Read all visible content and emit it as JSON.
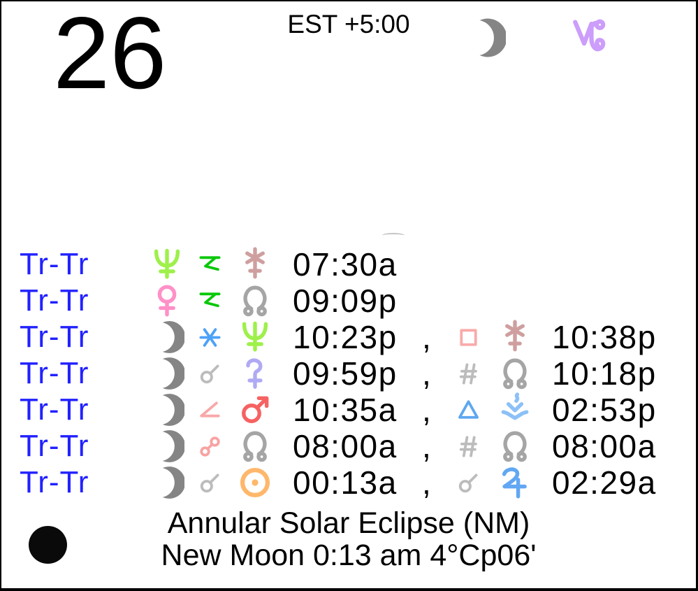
{
  "header": {
    "day_number": "26",
    "timezone": "EST +5:00",
    "moon_icon": "moon",
    "sign_icon": "capricorn"
  },
  "row_label": "Tr-Tr",
  "comma": ",",
  "transits": [
    {
      "label": "Tr-Tr",
      "events": [
        {
          "planet1": "neptune",
          "aspect": "quincunx",
          "planet2": "juno",
          "time": "07:30a"
        }
      ]
    },
    {
      "label": "Tr-Tr",
      "events": [
        {
          "planet1": "venus",
          "aspect": "quincunx",
          "planet2": "node",
          "time": "09:09p"
        }
      ]
    },
    {
      "label": "Tr-Tr",
      "events": [
        {
          "planet1": "moon",
          "aspect": "sextile",
          "planet2": "neptune",
          "time": "10:23p"
        },
        {
          "aspect": "square",
          "planet2": "juno",
          "time": "10:38p"
        }
      ]
    },
    {
      "label": "Tr-Tr",
      "events": [
        {
          "planet1": "moon",
          "aspect": "conjunction",
          "planet2": "ceres",
          "time": "09:59p"
        },
        {
          "aspect": "contraparallel",
          "planet2": "node",
          "time": "10:18p"
        }
      ]
    },
    {
      "label": "Tr-Tr",
      "events": [
        {
          "planet1": "moon",
          "aspect": "semisquare",
          "planet2": "mars",
          "time": "10:35a"
        },
        {
          "aspect": "trine",
          "planet2": "vesta",
          "time": "02:53p"
        }
      ]
    },
    {
      "label": "Tr-Tr",
      "events": [
        {
          "planet1": "moon",
          "aspect": "opposition",
          "planet2": "node",
          "time": "08:00a"
        },
        {
          "aspect": "contraparallel",
          "planet2": "node",
          "time": "08:00a"
        }
      ]
    },
    {
      "label": "Tr-Tr",
      "events": [
        {
          "planet1": "moon",
          "aspect": "conjunction",
          "planet2": "sun",
          "time": "00:13a"
        },
        {
          "aspect": "conjunction",
          "planet2": "jupiter",
          "time": "02:29a"
        }
      ]
    }
  ],
  "footer": {
    "phase_icon": "new-moon",
    "line1": "Annular Solar Eclipse (NM)",
    "line2": "New Moon 0:13 am 4°Cp06'"
  },
  "colors": {
    "label_blue": "#2121ff",
    "text_black": "#000000",
    "moon": "#858585",
    "sun": "#ffb76b",
    "venus": "#ff90c8",
    "mars": "#f66262",
    "jupiter": "#61a7f3",
    "neptune": "#9ef04a",
    "node": "#a5a5a5",
    "ceres": "#b0aaf4",
    "juno": "#cf9f9f",
    "vesta": "#8cc0f8",
    "capricorn": "#cc9dfb",
    "conjunction": "#bcbcbc",
    "opposition": "#f9a2a2",
    "sextile": "#4da2f8",
    "square": "#f9aaaa",
    "trine": "#5ea7f0",
    "semisquare": "#f9a8a8",
    "quincunx": "#0ac80a",
    "contraparallel": "#bcbcbc",
    "new_moon_fill": "#0a0a0a"
  }
}
